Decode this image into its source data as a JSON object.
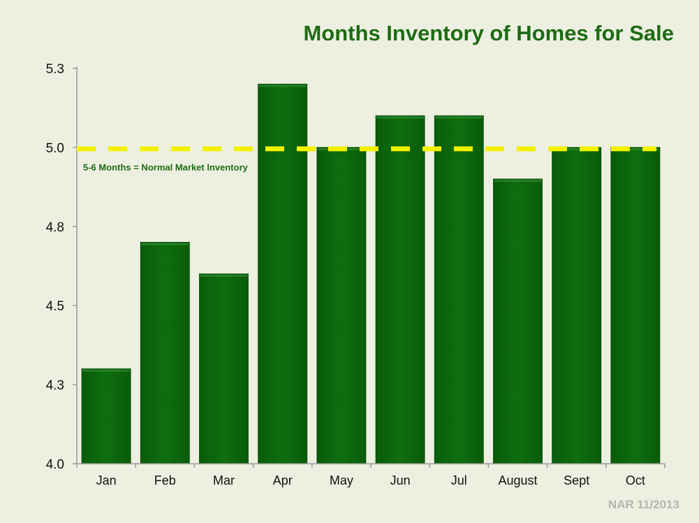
{
  "colors": {
    "background": "#edf0e1",
    "bar": "#0d690d",
    "bar_edge": "#064a06",
    "title": "#1e6b14",
    "reference_line": "#f2f200",
    "source_text": "#b3b6ac"
  },
  "chart_data": {
    "type": "bar",
    "title": "Months Inventory of Homes for Sale",
    "xlabel": "",
    "ylabel": "",
    "categories": [
      "Jan",
      "Feb",
      "Mar",
      "Apr",
      "May",
      "Jun",
      "Jul",
      "August",
      "Sept",
      "Oct"
    ],
    "values": [
      4.3,
      4.7,
      4.6,
      5.2,
      5.0,
      5.1,
      5.1,
      4.9,
      5.0,
      5.0
    ],
    "ylim": [
      4.0,
      5.3
    ],
    "yticks": [
      4.0,
      4.3,
      4.5,
      4.8,
      5.0,
      5.3
    ],
    "ytick_positions": [
      4.0,
      4.25,
      4.5,
      4.75,
      5.0,
      5.25
    ],
    "ytick_labels": [
      "4.0",
      "4.3",
      "4.5",
      "4.8",
      "5.0",
      "5.3"
    ],
    "grid": false,
    "legend": "none",
    "reference_line": {
      "value": 5.0,
      "style": "dashed",
      "label": "5-6 Months = Normal Market Inventory"
    }
  },
  "source": "NAR 11/2013"
}
